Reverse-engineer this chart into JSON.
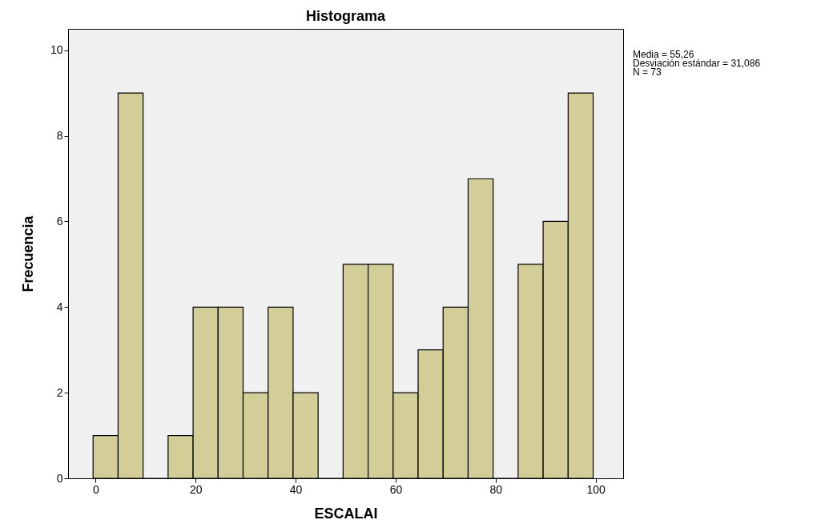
{
  "chart_data": {
    "type": "histogram",
    "title": "Histograma",
    "xlabel": "ESCALAI",
    "ylabel": "Frecuencia",
    "bins": [
      -0.5,
      4.5,
      9.5,
      14.5,
      19.5,
      24.5,
      29.5,
      34.5,
      39.5,
      44.5,
      49.5,
      54.5,
      59.5,
      64.5,
      69.5,
      74.5,
      79.5,
      84.5,
      89.5,
      94.5,
      99.5
    ],
    "values": [
      1,
      9,
      0,
      1,
      4,
      4,
      2,
      4,
      2,
      0,
      5,
      5,
      2,
      3,
      4,
      7,
      0,
      5,
      6,
      9
    ],
    "color": "#d3ce98",
    "xlim": [
      -5.5,
      105.5
    ],
    "xticks": [
      0,
      20,
      40,
      60,
      80,
      100
    ],
    "ylim": [
      0,
      10.5
    ],
    "yticks": [
      0,
      2,
      4,
      6,
      8,
      10
    ],
    "grid": false,
    "annotations": [
      "Media = 55,26",
      "Desviación estándar = 31,086",
      "N = 73"
    ]
  }
}
